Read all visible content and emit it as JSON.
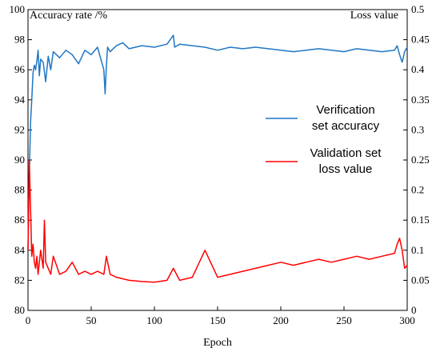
{
  "chart_data": {
    "type": "line",
    "title": "",
    "xlabel": "Epoch",
    "ylabel_left": "Accuracy rate /%",
    "ylabel_right": "Loss value",
    "xlim": [
      0,
      300
    ],
    "ylim_left": [
      80,
      100
    ],
    "ylim_right": [
      0,
      0.5
    ],
    "xticks": [
      "0",
      "50",
      "100",
      "150",
      "200",
      "250",
      "300"
    ],
    "yticks_left": [
      "80",
      "82",
      "84",
      "86",
      "88",
      "90",
      "92",
      "94",
      "96",
      "98",
      "100"
    ],
    "yticks_right": [
      "0",
      "0.05",
      "0.1",
      "0.15",
      "0.2",
      "0.25",
      "0.3",
      "0.35",
      "0.4",
      "0.45",
      "0.5"
    ],
    "grid": false,
    "legend_position": "center-right",
    "series": [
      {
        "name_lines": [
          "Verification",
          "set accuracy"
        ],
        "axis": "left",
        "color": "#1f77c4",
        "x": [
          0,
          1,
          2,
          3,
          4,
          5,
          6,
          7,
          8,
          9,
          10,
          12,
          14,
          16,
          18,
          20,
          25,
          30,
          35,
          40,
          45,
          50,
          55,
          60,
          61,
          62,
          63,
          65,
          70,
          75,
          80,
          90,
          100,
          110,
          115,
          116,
          120,
          130,
          140,
          150,
          160,
          170,
          180,
          190,
          200,
          210,
          220,
          230,
          240,
          250,
          260,
          270,
          280,
          290,
          292,
          294,
          296,
          298,
          300
        ],
        "y": [
          84.0,
          89.0,
          92.5,
          94.0,
          95.8,
          96.3,
          96.0,
          96.6,
          97.3,
          95.6,
          96.7,
          96.5,
          95.2,
          96.9,
          96.0,
          97.2,
          96.8,
          97.3,
          97.0,
          96.4,
          97.3,
          97.0,
          97.5,
          96.0,
          94.4,
          96.3,
          97.5,
          97.2,
          97.6,
          97.8,
          97.4,
          97.6,
          97.5,
          97.7,
          98.3,
          97.5,
          97.7,
          97.6,
          97.5,
          97.3,
          97.5,
          97.4,
          97.5,
          97.4,
          97.3,
          97.2,
          97.3,
          97.4,
          97.3,
          97.2,
          97.4,
          97.3,
          97.2,
          97.3,
          97.6,
          97.0,
          96.5,
          97.2,
          97.5
        ]
      },
      {
        "name_lines": [
          "Validation set",
          "loss value"
        ],
        "axis": "right",
        "color": "#ff0000",
        "x": [
          0,
          1,
          2,
          3,
          4,
          5,
          6,
          7,
          8,
          10,
          12,
          13,
          14,
          16,
          18,
          20,
          25,
          30,
          35,
          40,
          45,
          50,
          55,
          60,
          62,
          65,
          70,
          80,
          90,
          100,
          110,
          115,
          120,
          130,
          140,
          150,
          160,
          170,
          180,
          190,
          200,
          210,
          220,
          230,
          240,
          250,
          260,
          270,
          280,
          290,
          292,
          294,
          296,
          298,
          300
        ],
        "y": [
          0.1,
          0.25,
          0.17,
          0.09,
          0.11,
          0.08,
          0.07,
          0.09,
          0.06,
          0.1,
          0.07,
          0.15,
          0.08,
          0.07,
          0.06,
          0.09,
          0.06,
          0.065,
          0.08,
          0.06,
          0.065,
          0.06,
          0.065,
          0.06,
          0.09,
          0.06,
          0.055,
          0.05,
          0.048,
          0.047,
          0.05,
          0.07,
          0.05,
          0.055,
          0.1,
          0.055,
          0.06,
          0.065,
          0.07,
          0.075,
          0.08,
          0.075,
          0.08,
          0.085,
          0.08,
          0.085,
          0.09,
          0.085,
          0.09,
          0.095,
          0.11,
          0.12,
          0.1,
          0.07,
          0.075
        ]
      }
    ]
  }
}
